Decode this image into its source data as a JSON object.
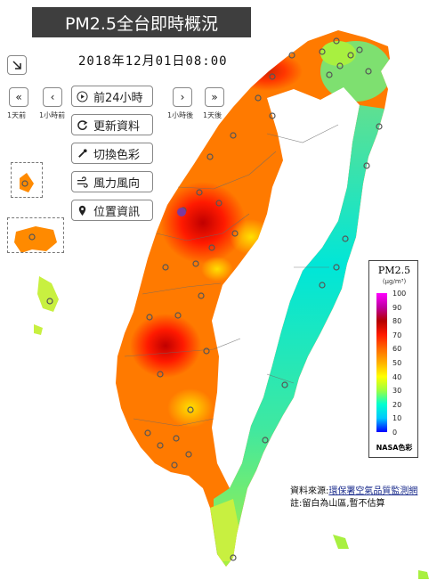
{
  "title": "PM2.5全台即時概況",
  "datetime": "2018年12月01日08:00",
  "nav": {
    "prev_day_caption": "1天前",
    "prev_hour_caption": "1小時前",
    "next_hour_caption": "1小時後",
    "next_day_caption": "1天後"
  },
  "menu": {
    "play_24h": "前24小時",
    "refresh": "更新資料",
    "switch_color": "切換色彩",
    "wind": "風力風向",
    "location": "位置資訊"
  },
  "legend": {
    "title": "PM2.5",
    "unit": "(μg/m³)",
    "ticks": [
      "100",
      "90",
      "80",
      "70",
      "60",
      "50",
      "40",
      "30",
      "20",
      "10",
      "0"
    ],
    "footer": "NASA色彩"
  },
  "notes": {
    "source_prefix": "資料來源:",
    "source_link": "環保署空氣品質監測網",
    "remark": "註:留白為山區,暫不估算"
  },
  "colors": {
    "title_bg": "#3e3e3e",
    "high": "#e81e00",
    "mid": "#ff7a00",
    "low": "#2fe0d0"
  }
}
